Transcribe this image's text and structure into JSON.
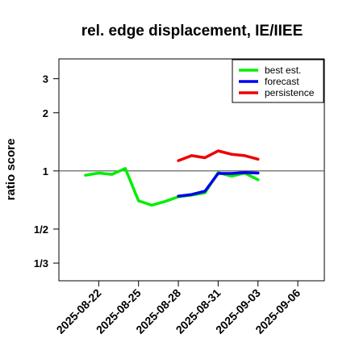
{
  "chart_data": {
    "type": "line",
    "title": "rel. edge displacement, IE/IIEE",
    "xlabel": "",
    "ylabel": "ratio score",
    "y_scale": "log",
    "ylim": [
      0.27,
      3.8
    ],
    "y_ticks": [
      {
        "value": 0.3333,
        "label": "1/3"
      },
      {
        "value": 0.5,
        "label": "1/2"
      },
      {
        "value": 1,
        "label": "1"
      },
      {
        "value": 2,
        "label": "2"
      },
      {
        "value": 3,
        "label": "3"
      }
    ],
    "reference_line": 1,
    "xlim": [
      "2025-08-19",
      "2025-09-08"
    ],
    "x_ticks": [
      {
        "value": "2025-08-22",
        "label": "2025-08-22",
        "color": "#000000"
      },
      {
        "value": "2025-08-25",
        "label": "2025-08-25",
        "color": "#000000"
      },
      {
        "value": "2025-08-28",
        "label": "2025-08-28",
        "color": "#228B22"
      },
      {
        "value": "2025-08-31",
        "label": "2025-08-31",
        "color": "#000000"
      },
      {
        "value": "2025-09-03",
        "label": "2025-09-03",
        "color": "#000000"
      },
      {
        "value": "2025-09-06",
        "label": "2025-09-06",
        "color": "#000000"
      }
    ],
    "legend_position": "top-right",
    "grid": false,
    "series": [
      {
        "name": "best est.",
        "color": "#00ee00",
        "points": [
          {
            "x": "2025-08-21",
            "y": 0.95
          },
          {
            "x": "2025-08-22",
            "y": 0.975
          },
          {
            "x": "2025-08-23",
            "y": 0.96
          },
          {
            "x": "2025-08-24",
            "y": 1.03
          },
          {
            "x": "2025-08-25",
            "y": 0.7
          },
          {
            "x": "2025-08-26",
            "y": 0.665
          },
          {
            "x": "2025-08-27",
            "y": 0.695
          },
          {
            "x": "2025-08-28",
            "y": 0.735
          },
          {
            "x": "2025-08-29",
            "y": 0.75
          },
          {
            "x": "2025-08-30",
            "y": 0.77
          },
          {
            "x": "2025-08-31",
            "y": 0.98
          },
          {
            "x": "2025-09-01",
            "y": 0.94
          },
          {
            "x": "2025-09-02",
            "y": 0.975
          },
          {
            "x": "2025-09-03",
            "y": 0.9
          }
        ]
      },
      {
        "name": "forecast",
        "color": "#0000ee",
        "points": [
          {
            "x": "2025-08-28",
            "y": 0.74
          },
          {
            "x": "2025-08-29",
            "y": 0.755
          },
          {
            "x": "2025-08-30",
            "y": 0.785
          },
          {
            "x": "2025-08-31",
            "y": 0.97
          },
          {
            "x": "2025-09-01",
            "y": 0.97
          },
          {
            "x": "2025-09-02",
            "y": 0.98
          },
          {
            "x": "2025-09-03",
            "y": 0.975
          }
        ]
      },
      {
        "name": "persistence",
        "color": "#ee0000",
        "points": [
          {
            "x": "2025-08-28",
            "y": 1.13
          },
          {
            "x": "2025-08-29",
            "y": 1.2
          },
          {
            "x": "2025-08-30",
            "y": 1.17
          },
          {
            "x": "2025-08-31",
            "y": 1.27
          },
          {
            "x": "2025-09-01",
            "y": 1.22
          },
          {
            "x": "2025-09-02",
            "y": 1.2
          },
          {
            "x": "2025-09-03",
            "y": 1.15
          }
        ]
      }
    ]
  }
}
